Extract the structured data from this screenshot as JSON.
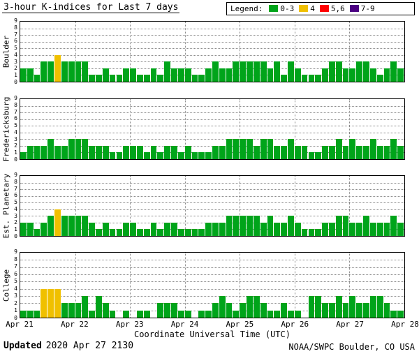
{
  "legend": {
    "label": "Legend:",
    "entries": [
      {
        "label": "0-3",
        "color": "#00a41a"
      },
      {
        "label": "4",
        "color": "#f0c000"
      },
      {
        "label": "5,6",
        "color": "#ff0000"
      },
      {
        "label": "7-9",
        "color": "#4b0082"
      }
    ]
  },
  "chart_data": {
    "type": "bar",
    "title": "3-hour K-indices for Last 7 days",
    "xlabel": "Coordinate Universal Time (UTC)",
    "x_tick_labels": [
      "Apr 21",
      "Apr 22",
      "Apr 23",
      "Apr 24",
      "Apr 25",
      "Apr 26",
      "Apr 27",
      "Apr 28"
    ],
    "ylim": [
      0,
      9
    ],
    "y_ticks": [
      0,
      1,
      2,
      3,
      4,
      5,
      6,
      7,
      8,
      9
    ],
    "hours_per_bar": 3,
    "bars_per_day": 8,
    "days": 7,
    "grid": true,
    "colors": {
      "k0_3": "#00a41a",
      "k4": "#f0c000",
      "k5_6": "#ff0000",
      "k7_9": "#4b0082"
    },
    "panels": [
      {
        "station": "Boulder",
        "values": [
          2,
          2,
          1,
          3,
          3,
          4,
          3,
          3,
          3,
          3,
          1,
          1,
          2,
          1,
          1,
          2,
          2,
          1,
          1,
          2,
          1,
          3,
          2,
          2,
          2,
          1,
          1,
          2,
          3,
          2,
          2,
          3,
          3,
          3,
          3,
          3,
          2,
          3,
          1,
          3,
          2,
          1,
          1,
          1,
          2,
          3,
          3,
          2,
          2,
          3,
          3,
          2,
          1,
          2,
          3,
          2
        ]
      },
      {
        "station": "Fredericksburg",
        "values": [
          1,
          2,
          2,
          2,
          3,
          2,
          2,
          3,
          3,
          3,
          2,
          2,
          2,
          1,
          1,
          2,
          2,
          2,
          1,
          2,
          1,
          2,
          2,
          1,
          2,
          1,
          1,
          1,
          2,
          2,
          3,
          3,
          3,
          3,
          2,
          3,
          3,
          2,
          2,
          3,
          2,
          2,
          1,
          1,
          2,
          2,
          3,
          2,
          3,
          2,
          2,
          3,
          2,
          2,
          3,
          2
        ]
      },
      {
        "station": "Est. Planetary",
        "values": [
          2,
          2,
          1,
          2,
          3,
          4,
          3,
          3,
          3,
          3,
          2,
          1,
          2,
          1,
          1,
          2,
          2,
          1,
          1,
          2,
          1,
          2,
          2,
          1,
          1,
          1,
          1,
          2,
          2,
          2,
          3,
          3,
          3,
          3,
          3,
          2,
          3,
          2,
          2,
          3,
          2,
          1,
          1,
          1,
          2,
          2,
          3,
          3,
          2,
          2,
          3,
          2,
          2,
          2,
          3,
          2
        ]
      },
      {
        "station": "College",
        "values": [
          1,
          1,
          1,
          4,
          4,
          4,
          2,
          2,
          2,
          3,
          1,
          3,
          2,
          1,
          0,
          1,
          0,
          1,
          1,
          0,
          2,
          2,
          2,
          1,
          1,
          0,
          1,
          1,
          2,
          3,
          2,
          1,
          2,
          3,
          3,
          2,
          1,
          1,
          2,
          1,
          1,
          0,
          3,
          3,
          2,
          2,
          3,
          2,
          3,
          2,
          2,
          3,
          3,
          2,
          1,
          1
        ]
      }
    ]
  },
  "footer": {
    "updated_label": "Updated",
    "updated_value": "2020 Apr 27 2130",
    "credit": "NOAA/SWPC Boulder, CO USA"
  }
}
